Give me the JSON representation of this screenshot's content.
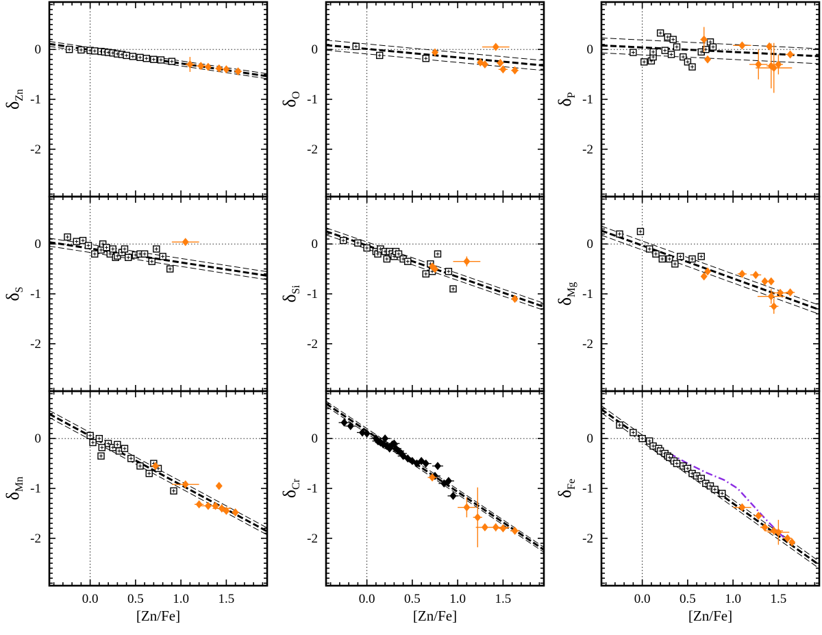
{
  "chart_data": {
    "type": "scatter",
    "layout": "3x3 grid, shared axes",
    "xlabel": "[Zn/Fe]",
    "xlim": [
      -0.45,
      1.95
    ],
    "ylim": [
      -2.95,
      0.95
    ],
    "xticks": [
      "0.0",
      "0.5",
      "1.0",
      "1.5"
    ],
    "yticks": [
      "0",
      "-1",
      "-2"
    ],
    "colors": {
      "reference": "#000000",
      "sample": "#ff7f0e",
      "model": "#8a2be2"
    },
    "series_legend": {
      "squares": "reference sample (black open squares)",
      "diamonds": "new sample (orange diamonds)"
    },
    "panels": [
      {
        "element": "Zn",
        "ylabel": "δ",
        "ylabel_sub": "Zn",
        "fit": {
          "slope": -0.27,
          "intercept": -0.01,
          "band": 0.05
        },
        "squares": [
          [
            -0.23,
            0.0
          ],
          [
            -0.1,
            -0.01
          ],
          [
            0.0,
            -0.02
          ],
          [
            0.05,
            -0.03
          ],
          [
            0.12,
            -0.04
          ],
          [
            0.16,
            -0.05
          ],
          [
            0.2,
            -0.06
          ],
          [
            0.25,
            -0.07
          ],
          [
            0.3,
            -0.09
          ],
          [
            0.35,
            -0.1
          ],
          [
            0.4,
            -0.12
          ],
          [
            0.47,
            -0.14
          ],
          [
            0.55,
            -0.16
          ],
          [
            0.62,
            -0.18
          ],
          [
            0.7,
            -0.2
          ],
          [
            0.78,
            -0.21
          ],
          [
            0.9,
            -0.24
          ]
        ],
        "diamonds": [
          {
            "x": 1.1,
            "y": -0.3,
            "ex": 0.05,
            "ey": 0.15
          },
          {
            "x": 1.22,
            "y": -0.33,
            "ex": 0.05,
            "ey": 0.03
          },
          {
            "x": 1.3,
            "y": -0.35,
            "ex": 0.03,
            "ey": 0.03
          },
          {
            "x": 1.42,
            "y": -0.38,
            "ex": 0.04,
            "ey": 0.03
          },
          {
            "x": 1.5,
            "y": -0.4,
            "ex": 0.03,
            "ey": 0.03
          },
          {
            "x": 1.63,
            "y": -0.44,
            "ex": 0.04,
            "ey": 0.03
          }
        ]
      },
      {
        "element": "O",
        "ylabel": "δ",
        "ylabel_sub": "O",
        "fit": {
          "slope": -0.17,
          "intercept": 0.01,
          "band": 0.1
        },
        "squares": [
          [
            -0.12,
            0.06
          ],
          [
            0.14,
            -0.12
          ],
          [
            0.65,
            -0.18
          ]
        ],
        "diamonds": [
          {
            "x": 0.75,
            "y": -0.06,
            "ex": 0.03,
            "ey": 0.03
          },
          {
            "x": 1.25,
            "y": -0.26,
            "ex": 0.03,
            "ey": 0.03
          },
          {
            "x": 1.3,
            "y": -0.3,
            "ex": 0.04,
            "ey": 0.03
          },
          {
            "x": 1.42,
            "y": 0.05,
            "ex": 0.15,
            "ey": 0.06
          },
          {
            "x": 1.47,
            "y": -0.27,
            "ex": 0.04,
            "ey": 0.03
          },
          {
            "x": 1.5,
            "y": -0.4,
            "ex": 0.05,
            "ey": 0.03
          },
          {
            "x": 1.63,
            "y": -0.42,
            "ex": 0.04,
            "ey": 0.06
          }
        ]
      },
      {
        "element": "P",
        "ylabel": "δ",
        "ylabel_sub": "P",
        "fit": {
          "slope": -0.09,
          "intercept": 0.04,
          "band": 0.15
        },
        "squares": [
          [
            -0.1,
            -0.06
          ],
          [
            0.02,
            -0.25
          ],
          [
            0.1,
            -0.23
          ],
          [
            0.12,
            -0.15
          ],
          [
            0.12,
            -0.05
          ],
          [
            0.2,
            0.33
          ],
          [
            0.25,
            -0.02
          ],
          [
            0.28,
            0.25
          ],
          [
            0.32,
            -0.1
          ],
          [
            0.34,
            0.2
          ],
          [
            0.38,
            0.05
          ],
          [
            0.45,
            -0.15
          ],
          [
            0.5,
            -0.25
          ],
          [
            0.55,
            -0.35
          ],
          [
            0.65,
            -0.05
          ],
          [
            0.7,
            0.0
          ],
          [
            0.75,
            0.15
          ],
          [
            0.78,
            0.05
          ]
        ],
        "diamonds": [
          {
            "x": 0.68,
            "y": 0.2,
            "ex": 0.04,
            "ey": 0.25
          },
          {
            "x": 0.72,
            "y": -0.2,
            "ex": 0.03,
            "ey": 0.05
          },
          {
            "x": 1.1,
            "y": 0.08,
            "ex": 0.1,
            "ey": 0.03
          },
          {
            "x": 1.28,
            "y": -0.3,
            "ex": 0.1,
            "ey": 0.3
          },
          {
            "x": 1.4,
            "y": 0.06,
            "ex": 0.03,
            "ey": 0.03
          },
          {
            "x": 1.42,
            "y": -0.33,
            "ex": 0.05,
            "ey": 0.45
          },
          {
            "x": 1.45,
            "y": -0.37,
            "ex": 0.2,
            "ey": 0.5
          },
          {
            "x": 1.5,
            "y": -0.3,
            "ex": 0.05,
            "ey": 0.2
          },
          {
            "x": 1.63,
            "y": -0.1,
            "ex": 0.05,
            "ey": 0.03
          }
        ]
      },
      {
        "element": "S",
        "ylabel": "δ",
        "ylabel_sub": "S",
        "fit": {
          "slope": -0.28,
          "intercept": -0.09,
          "band": 0.08
        },
        "squares": [
          [
            -0.25,
            0.14
          ],
          [
            -0.15,
            0.05
          ],
          [
            -0.08,
            0.07
          ],
          [
            -0.02,
            -0.03
          ],
          [
            0.05,
            -0.2
          ],
          [
            0.12,
            -0.12
          ],
          [
            0.14,
            0.0
          ],
          [
            0.18,
            -0.07
          ],
          [
            0.22,
            -0.2
          ],
          [
            0.25,
            -0.1
          ],
          [
            0.28,
            -0.27
          ],
          [
            0.3,
            -0.24
          ],
          [
            0.35,
            -0.17
          ],
          [
            0.38,
            -0.1
          ],
          [
            0.42,
            -0.27
          ],
          [
            0.5,
            -0.22
          ],
          [
            0.55,
            -0.2
          ],
          [
            0.6,
            -0.2
          ],
          [
            0.68,
            -0.35
          ],
          [
            0.73,
            -0.1
          ],
          [
            0.8,
            -0.25
          ],
          [
            0.88,
            -0.5
          ]
        ],
        "diamonds": [
          {
            "x": 1.05,
            "y": 0.04,
            "ex": 0.15,
            "ey": 0.03
          }
        ]
      },
      {
        "element": "Si",
        "ylabel": "δ",
        "ylabel_sub": "Si",
        "fit": {
          "slope": -0.63,
          "intercept": -0.03,
          "band": 0.07
        },
        "squares": [
          [
            -0.26,
            0.07
          ],
          [
            -0.1,
            0.02
          ],
          [
            0.0,
            -0.08
          ],
          [
            0.1,
            -0.15
          ],
          [
            0.12,
            -0.2
          ],
          [
            0.15,
            -0.1
          ],
          [
            0.2,
            -0.15
          ],
          [
            0.22,
            -0.3
          ],
          [
            0.25,
            -0.15
          ],
          [
            0.28,
            -0.2
          ],
          [
            0.3,
            -0.25
          ],
          [
            0.32,
            -0.15
          ],
          [
            0.35,
            -0.2
          ],
          [
            0.4,
            -0.3
          ],
          [
            0.45,
            -0.35
          ],
          [
            0.65,
            -0.6
          ],
          [
            0.7,
            -0.4
          ],
          [
            0.72,
            -0.55
          ],
          [
            0.78,
            -0.2
          ],
          [
            0.9,
            -0.55
          ],
          [
            0.95,
            -0.9
          ]
        ],
        "diamonds": [
          {
            "x": 0.72,
            "y": -0.45,
            "ex": 0.03,
            "ey": 0.03
          },
          {
            "x": 0.75,
            "y": -0.5,
            "ex": 0.04,
            "ey": 0.04
          },
          {
            "x": 1.1,
            "y": -0.35,
            "ex": 0.15,
            "ey": 0.1
          },
          {
            "x": 1.63,
            "y": -1.1,
            "ex": 0.03,
            "ey": 0.03
          }
        ]
      },
      {
        "element": "Mg",
        "ylabel": "δ",
        "ylabel_sub": "Mg",
        "fit": {
          "slope": -0.66,
          "intercept": -0.03,
          "band": 0.09
        },
        "squares": [
          [
            -0.25,
            0.2
          ],
          [
            -0.02,
            0.25
          ],
          [
            0.08,
            -0.1
          ],
          [
            0.15,
            -0.2
          ],
          [
            0.22,
            -0.3
          ],
          [
            0.3,
            -0.3
          ],
          [
            0.36,
            -0.4
          ],
          [
            0.42,
            -0.25
          ],
          [
            0.55,
            -0.3
          ],
          [
            0.65,
            -0.25
          ]
        ],
        "diamonds": [
          {
            "x": 0.68,
            "y": -0.65,
            "ex": 0.03,
            "ey": 0.03
          },
          {
            "x": 0.72,
            "y": -0.55,
            "ex": 0.03,
            "ey": 0.03
          },
          {
            "x": 1.1,
            "y": -0.6,
            "ex": 0.05,
            "ey": 0.03
          },
          {
            "x": 1.25,
            "y": -0.62,
            "ex": 0.06,
            "ey": 0.03
          },
          {
            "x": 1.35,
            "y": -0.75,
            "ex": 0.03,
            "ey": 0.03
          },
          {
            "x": 1.42,
            "y": -0.75,
            "ex": 0.03,
            "ey": 0.03
          },
          {
            "x": 1.42,
            "y": -1.05,
            "ex": 0.15,
            "ey": 0.15
          },
          {
            "x": 1.45,
            "y": -1.25,
            "ex": 0.05,
            "ey": 0.15
          },
          {
            "x": 1.52,
            "y": -0.98,
            "ex": 0.1,
            "ey": 0.05
          },
          {
            "x": 1.63,
            "y": -0.97,
            "ex": 0.05,
            "ey": 0.03
          }
        ]
      },
      {
        "element": "Mn",
        "ylabel": "δ",
        "ylabel_sub": "Mn",
        "fit": {
          "slope": -0.98,
          "intercept": 0.05,
          "band": 0.07
        },
        "squares": [
          [
            0.0,
            0.06
          ],
          [
            0.03,
            -0.08
          ],
          [
            0.1,
            0.0
          ],
          [
            0.13,
            -0.18
          ],
          [
            0.12,
            -0.35
          ],
          [
            0.2,
            -0.1
          ],
          [
            0.25,
            -0.18
          ],
          [
            0.3,
            -0.12
          ],
          [
            0.32,
            -0.25
          ],
          [
            0.38,
            -0.2
          ],
          [
            0.45,
            -0.4
          ],
          [
            0.55,
            -0.55
          ],
          [
            0.65,
            -0.7
          ],
          [
            0.7,
            -0.5
          ],
          [
            0.75,
            -0.6
          ],
          [
            0.92,
            -1.05
          ]
        ],
        "diamonds": [
          {
            "x": 0.72,
            "y": -0.55,
            "ex": 0.05,
            "ey": 0.05
          },
          {
            "x": 1.05,
            "y": -0.92,
            "ex": 0.15,
            "ey": 0.03
          },
          {
            "x": 1.2,
            "y": -1.32,
            "ex": 0.05,
            "ey": 0.03
          },
          {
            "x": 1.3,
            "y": -1.35,
            "ex": 0.1,
            "ey": 0.03
          },
          {
            "x": 1.38,
            "y": -1.35,
            "ex": 0.04,
            "ey": 0.03
          },
          {
            "x": 1.42,
            "y": -0.95,
            "ex": 0.03,
            "ey": 0.03
          },
          {
            "x": 1.45,
            "y": -1.4,
            "ex": 0.1,
            "ey": 0.08
          },
          {
            "x": 1.5,
            "y": -1.45,
            "ex": 0.04,
            "ey": 0.03
          },
          {
            "x": 1.6,
            "y": -1.48,
            "ex": 0.04,
            "ey": 0.03
          }
        ]
      },
      {
        "element": "Cr",
        "ylabel": "δ",
        "ylabel_sub": "Cr",
        "fit": {
          "slope": -1.22,
          "intercept": 0.15,
          "band": 0.05
        },
        "squares": [],
        "black_diamonds": [
          [
            -0.25,
            0.32
          ],
          [
            -0.18,
            0.25
          ],
          [
            -0.05,
            0.12
          ],
          [
            0.0,
            0.1
          ],
          [
            0.1,
            0.0
          ],
          [
            0.12,
            -0.05
          ],
          [
            0.15,
            -0.08
          ],
          [
            0.18,
            -0.12
          ],
          [
            0.2,
            0.0
          ],
          [
            0.22,
            -0.15
          ],
          [
            0.25,
            -0.2
          ],
          [
            0.28,
            -0.12
          ],
          [
            0.3,
            -0.1
          ],
          [
            0.32,
            -0.2
          ],
          [
            0.35,
            -0.25
          ],
          [
            0.38,
            -0.3
          ],
          [
            0.4,
            -0.35
          ],
          [
            0.45,
            -0.4
          ],
          [
            0.5,
            -0.45
          ],
          [
            0.55,
            -0.5
          ],
          [
            0.6,
            -0.45
          ],
          [
            0.65,
            -0.5
          ],
          [
            0.75,
            -0.75
          ],
          [
            0.78,
            -0.55
          ],
          [
            0.85,
            -0.9
          ],
          [
            0.9,
            -0.85
          ],
          [
            0.95,
            -1.15
          ]
        ],
        "diamonds": [
          {
            "x": 0.72,
            "y": -0.78,
            "ex": 0.05,
            "ey": 0.05
          },
          {
            "x": 1.1,
            "y": -1.38,
            "ex": 0.1,
            "ey": 0.2
          },
          {
            "x": 1.22,
            "y": -1.58,
            "ex": 0.05,
            "ey": 0.6
          },
          {
            "x": 1.3,
            "y": -1.78,
            "ex": 0.1,
            "ey": 0.05
          },
          {
            "x": 1.42,
            "y": -1.78,
            "ex": 0.15,
            "ey": 0.08
          },
          {
            "x": 1.5,
            "y": -1.8,
            "ex": 0.05,
            "ey": 0.05
          },
          {
            "x": 1.63,
            "y": -1.85,
            "ex": 0.05,
            "ey": 0.03
          }
        ]
      },
      {
        "element": "Fe",
        "ylabel": "δ",
        "ylabel_sub": "Fe",
        "fit": {
          "slope": -1.3,
          "intercept": 0.0,
          "band": 0.07
        },
        "squares": [
          [
            -0.25,
            0.27
          ],
          [
            -0.1,
            0.12
          ],
          [
            0.0,
            0.0
          ],
          [
            0.08,
            -0.05
          ],
          [
            0.12,
            -0.15
          ],
          [
            0.18,
            -0.2
          ],
          [
            0.2,
            -0.25
          ],
          [
            0.25,
            -0.3
          ],
          [
            0.28,
            -0.35
          ],
          [
            0.3,
            -0.38
          ],
          [
            0.35,
            -0.45
          ],
          [
            0.38,
            -0.5
          ],
          [
            0.45,
            -0.55
          ],
          [
            0.5,
            -0.6
          ],
          [
            0.55,
            -0.7
          ],
          [
            0.6,
            -0.75
          ],
          [
            0.65,
            -0.8
          ],
          [
            0.7,
            -0.9
          ],
          [
            0.75,
            -0.95
          ],
          [
            0.8,
            -1.02
          ],
          [
            0.88,
            -1.1
          ]
        ],
        "diamonds": [
          {
            "x": 1.1,
            "y": -1.38,
            "ex": 0.1,
            "ey": 0.03
          },
          {
            "x": 1.28,
            "y": -1.55,
            "ex": 0.05,
            "ey": 0.03
          },
          {
            "x": 1.35,
            "y": -1.78,
            "ex": 0.05,
            "ey": 0.03
          },
          {
            "x": 1.45,
            "y": -1.85,
            "ex": 0.1,
            "ey": 0.08
          },
          {
            "x": 1.5,
            "y": -1.88,
            "ex": 0.12,
            "ey": 0.25
          },
          {
            "x": 1.6,
            "y": -2.0,
            "ex": 0.05,
            "ey": 0.05
          },
          {
            "x": 1.65,
            "y": -2.08,
            "ex": 0.03,
            "ey": 0.03
          }
        ],
        "model": [
          [
            0.3,
            -0.3
          ],
          [
            0.5,
            -0.5
          ],
          [
            0.7,
            -0.68
          ],
          [
            0.9,
            -0.83
          ],
          [
            1.05,
            -1.0
          ],
          [
            1.2,
            -1.3
          ],
          [
            1.35,
            -1.6
          ],
          [
            1.5,
            -1.88
          ],
          [
            1.6,
            -2.05
          ]
        ]
      }
    ]
  }
}
